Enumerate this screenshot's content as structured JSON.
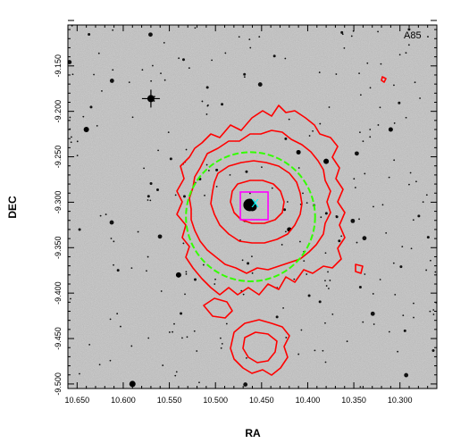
{
  "figure": {
    "panel_label": "A85",
    "xlabel": "RA",
    "ylabel": "DEC",
    "ra_range": [
      10.66,
      10.26
    ],
    "dec_range": [
      -9.505,
      -9.105
    ],
    "x_ticks": [
      "10.650",
      "10.600",
      "10.550",
      "10.500",
      "10.450",
      "10.400",
      "10.350",
      "10.300"
    ],
    "x_tick_values": [
      10.65,
      10.6,
      10.55,
      10.5,
      10.45,
      10.4,
      10.35,
      10.3
    ],
    "y_ticks": [
      "-9.150",
      "-9.200",
      "-9.250",
      "-9.300",
      "-9.350",
      "-9.400",
      "-9.450",
      "-9.500"
    ],
    "y_tick_values": [
      -9.15,
      -9.2,
      -9.25,
      -9.3,
      -9.35,
      -9.4,
      -9.45,
      -9.5
    ]
  },
  "overlays": {
    "contour_color": "#ff0000",
    "circle_color": "#33ff00",
    "box_color": "#ff00ff",
    "marker_color": "#00ffff",
    "marker_glyph": "X",
    "circle_radius_deg": 0.07,
    "circle_center": [
      10.462,
      -9.316
    ],
    "box_center": [
      10.458,
      -9.304
    ],
    "marker_center": [
      10.457,
      -9.302
    ]
  },
  "image": {
    "background_gray": "#b9b9b9"
  }
}
